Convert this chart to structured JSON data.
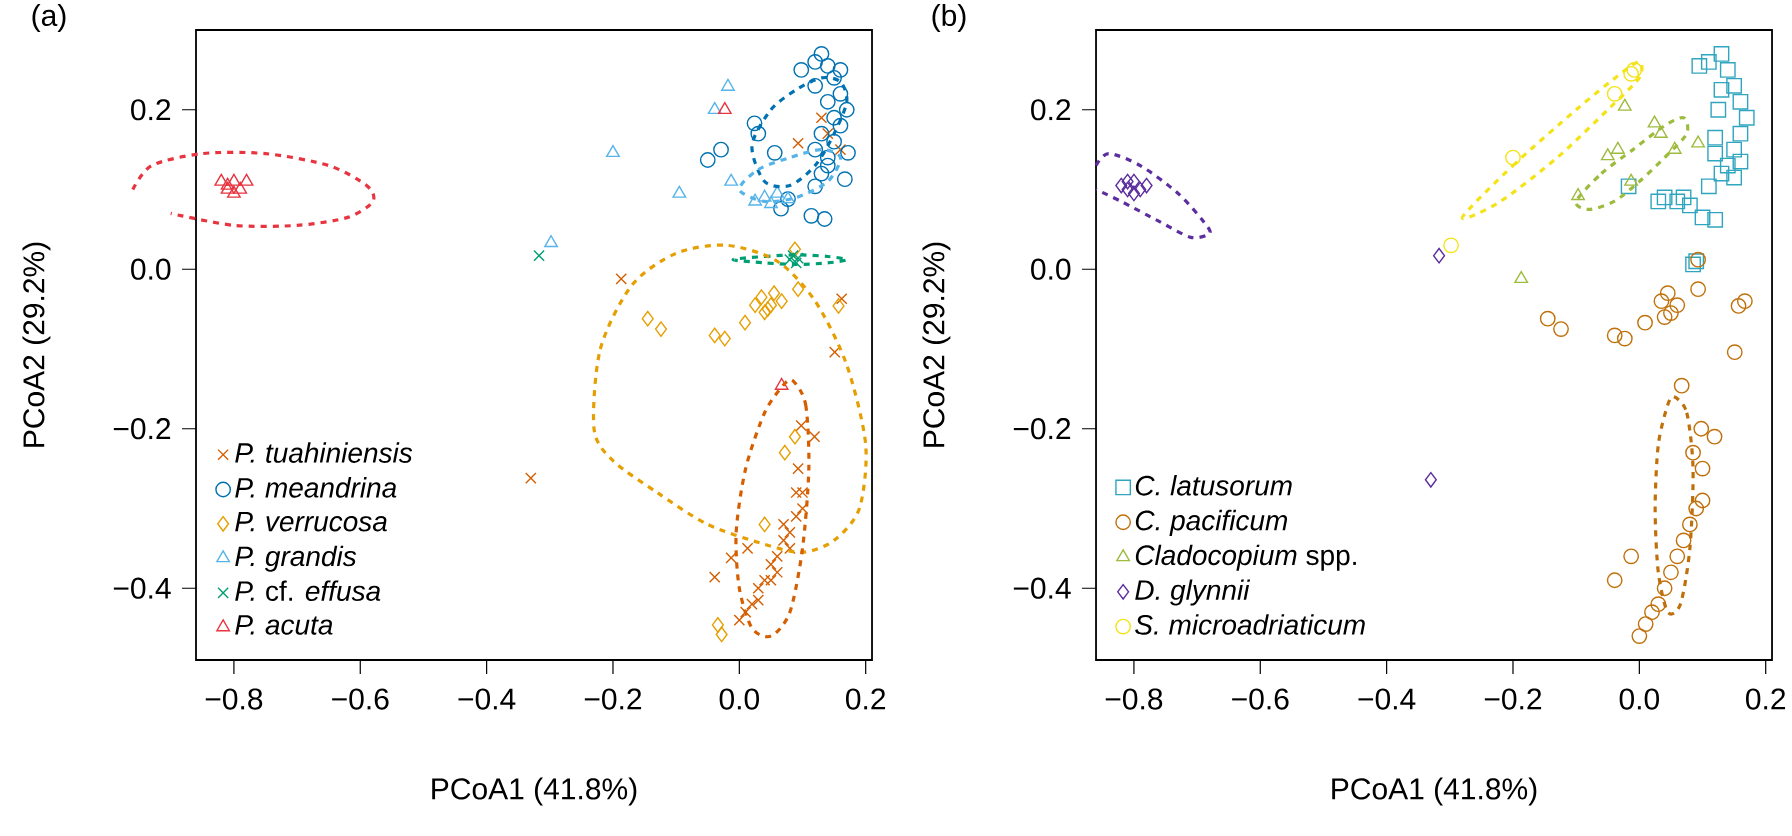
{
  "chart_data": [
    {
      "type": "scatter",
      "title": "(a)",
      "xlabel": "PCoA1 (41.8%)",
      "ylabel": "PCoA2 (29.2%)",
      "xlim": [
        -0.86,
        0.21
      ],
      "ylim": [
        -0.49,
        0.3
      ],
      "xticks": [
        {
          "value": -0.8,
          "label": "−0.8"
        },
        {
          "value": -0.6,
          "label": "−0.6"
        },
        {
          "value": -0.4,
          "label": "−0.4"
        },
        {
          "value": -0.2,
          "label": "−0.2"
        },
        {
          "value": 0,
          "label": "0.0"
        },
        0.2
      ],
      "yticks": [
        {
          "value": -0.4,
          "label": "−0.4"
        },
        {
          "value": -0.2,
          "label": "−0.2"
        },
        {
          "value": 0,
          "label": "0.0"
        },
        0.2
      ],
      "legend": "bottom left",
      "series": [
        {
          "name": "*P. tuahiniensis*",
          "marker": "cross",
          "color": "#d55e00",
          "x": [
            -0.33,
            -0.187,
            0.093,
            0.162,
            0.151,
            0.098,
            0.119,
            0.093,
            -0.039,
            -0.013,
            0.013,
            0.0,
            0.01,
            0.02,
            0.03,
            0.04,
            0.05,
            0.06,
            0.07,
            0.08,
            0.09,
            0.1,
            0.1,
            0.05,
            0.06,
            0.08,
            0.03,
            0.07,
            0.09,
            0.14,
            0.16,
            0.13
          ],
          "values": [
            -0.262,
            -0.012,
            0.158,
            -0.037,
            -0.104,
            -0.196,
            -0.21,
            -0.25,
            -0.386,
            -0.362,
            -0.35,
            -0.44,
            -0.43,
            -0.42,
            -0.4,
            -0.39,
            -0.37,
            -0.36,
            -0.34,
            -0.33,
            -0.31,
            -0.3,
            -0.28,
            -0.39,
            -0.38,
            -0.35,
            -0.415,
            -0.32,
            -0.28,
            0.17,
            0.15,
            0.19
          ]
        },
        {
          "name": "*P. meandrina*",
          "marker": "circle",
          "color": "#0072b2",
          "x": [
            -0.05,
            -0.029,
            0.024,
            0.03,
            0.056,
            0.077,
            0.066,
            0.114,
            0.135,
            0.12,
            0.098,
            0.167,
            0.172,
            0.12,
            0.13,
            0.14,
            0.15,
            0.16,
            0.17,
            0.16,
            0.15,
            0.14,
            0.13,
            0.12,
            0.14,
            0.15,
            0.13,
            0.16,
            0.12,
            0.14
          ],
          "values": [
            0.137,
            0.15,
            0.183,
            0.17,
            0.146,
            0.088,
            0.076,
            0.067,
            0.063,
            0.104,
            0.25,
            0.113,
            0.146,
            0.26,
            0.27,
            0.255,
            0.24,
            0.22,
            0.2,
            0.18,
            0.16,
            0.14,
            0.12,
            0.23,
            0.21,
            0.19,
            0.17,
            0.25,
            0.15,
            0.13
          ]
        },
        {
          "name": "*P. verrucosa*",
          "marker": "diamond",
          "color": "#e69f00",
          "x": [
            -0.145,
            -0.124,
            -0.039,
            -0.023,
            0.009,
            0.025,
            0.035,
            0.045,
            0.055,
            0.067,
            0.04,
            0.05,
            0.093,
            0.157,
            0.072,
            0.088,
            0.04,
            -0.034,
            -0.028,
            0.088
          ],
          "values": [
            -0.062,
            -0.075,
            -0.083,
            -0.087,
            -0.067,
            -0.045,
            -0.035,
            -0.05,
            -0.03,
            -0.04,
            -0.054,
            -0.045,
            -0.025,
            -0.046,
            -0.23,
            -0.21,
            -0.32,
            -0.446,
            -0.458,
            0.025
          ]
        },
        {
          "name": "*P. grandis*",
          "marker": "triangle",
          "color": "#56b4e9",
          "x": [
            -0.018,
            -0.039,
            -0.2,
            -0.095,
            -0.298,
            -0.013,
            0.025,
            0.04,
            0.05,
            0.06,
            0.077
          ],
          "values": [
            0.229,
            0.2,
            0.146,
            0.095,
            0.033,
            0.11,
            0.085,
            0.09,
            0.082,
            0.095,
            0.088
          ]
        },
        {
          "name": "*P.* cf. *effusa*",
          "marker": "cross",
          "color": "#009e73",
          "x": [
            -0.317,
            0.08,
            0.085,
            0.09,
            0.093
          ],
          "values": [
            0.017,
            0.012,
            0.017,
            0.008,
            0.014
          ]
        },
        {
          "name": "*P. acuta*",
          "marker": "triangle",
          "color": "#e8343f",
          "x": [
            -0.82,
            -0.81,
            -0.8,
            -0.79,
            -0.78,
            -0.8,
            -0.81,
            -0.023,
            0.067
          ],
          "values": [
            0.11,
            0.1,
            0.11,
            0.1,
            0.11,
            0.095,
            0.105,
            0.2,
            -0.146
          ]
        }
      ]
    },
    {
      "type": "scatter",
      "title": "(b)",
      "xlabel": "PCoA1 (41.8%)",
      "ylabel": "PCoA2 (29.2%)",
      "xlim": [
        -0.86,
        0.21
      ],
      "ylim": [
        -0.49,
        0.3
      ],
      "xticks": [
        {
          "value": -0.8,
          "label": "−0.8"
        },
        {
          "value": -0.6,
          "label": "−0.6"
        },
        {
          "value": -0.4,
          "label": "−0.4"
        },
        {
          "value": -0.2,
          "label": "−0.2"
        },
        {
          "value": 0,
          "label": "0.0"
        },
        0.2
      ],
      "yticks": [
        {
          "value": -0.4,
          "label": "−0.4"
        },
        {
          "value": -0.2,
          "label": "−0.2"
        },
        {
          "value": 0,
          "label": "0.0"
        },
        0.2
      ],
      "legend": "bottom left",
      "series": [
        {
          "name": "*C. latusorum*",
          "marker": "square",
          "color": "#30a5c0",
          "x": [
            0.095,
            0.11,
            0.13,
            0.14,
            0.15,
            0.16,
            0.17,
            0.16,
            0.15,
            0.14,
            0.13,
            0.15,
            0.16,
            0.12,
            0.125,
            0.13,
            0.12,
            0.04,
            0.06,
            0.07,
            0.08,
            0.03,
            0.1,
            0.12,
            0.11,
            -0.017,
            0.085,
            0.09
          ],
          "values": [
            0.255,
            0.26,
            0.27,
            0.25,
            0.23,
            0.21,
            0.19,
            0.17,
            0.15,
            0.13,
            0.12,
            0.115,
            0.135,
            0.145,
            0.2,
            0.225,
            0.165,
            0.09,
            0.085,
            0.09,
            0.08,
            0.085,
            0.065,
            0.062,
            0.104,
            0.104,
            0.006,
            0.01
          ]
        },
        {
          "name": "*C. pacificum*",
          "marker": "circle",
          "color": "#c0700a",
          "x": [
            -0.145,
            -0.124,
            -0.039,
            -0.023,
            0.009,
            0.035,
            0.045,
            0.05,
            0.06,
            0.04,
            0.093,
            0.093,
            0.157,
            0.167,
            0.151,
            0.067,
            0.098,
            0.119,
            -0.039,
            -0.013,
            0.0,
            0.01,
            0.02,
            0.03,
            0.04,
            0.05,
            0.06,
            0.07,
            0.08,
            0.09,
            0.1,
            0.1,
            0.085
          ],
          "values": [
            -0.062,
            -0.075,
            -0.083,
            -0.087,
            -0.067,
            -0.04,
            -0.03,
            -0.055,
            -0.045,
            -0.06,
            -0.025,
            0.012,
            -0.046,
            -0.04,
            -0.104,
            -0.146,
            -0.2,
            -0.21,
            -0.39,
            -0.36,
            -0.46,
            -0.445,
            -0.43,
            -0.42,
            -0.4,
            -0.38,
            -0.36,
            -0.34,
            -0.32,
            -0.3,
            -0.29,
            -0.25,
            -0.23
          ]
        },
        {
          "name": "*Cladocopium* spp.",
          "marker": "triangle",
          "color": "#9dbb3c",
          "x": [
            -0.023,
            -0.034,
            -0.05,
            0.024,
            0.034,
            0.056,
            0.093,
            -0.097,
            -0.013,
            -0.187
          ],
          "values": [
            0.204,
            0.15,
            0.142,
            0.183,
            0.17,
            0.15,
            0.158,
            0.092,
            0.11,
            -0.012
          ]
        },
        {
          "name": "*D. glynnii*",
          "marker": "diamond",
          "color": "#5b2d9e",
          "x": [
            -0.82,
            -0.81,
            -0.8,
            -0.79,
            -0.78,
            -0.8,
            -0.81,
            -0.317,
            -0.33
          ],
          "values": [
            0.105,
            0.1,
            0.11,
            0.1,
            0.105,
            0.095,
            0.11,
            0.017,
            -0.264
          ]
        },
        {
          "name": "*S. microadriaticum*",
          "marker": "circle",
          "color": "#f5e31a",
          "x": [
            -0.298,
            -0.2,
            -0.039,
            -0.013,
            -0.008
          ],
          "values": [
            0.03,
            0.14,
            0.22,
            0.245,
            0.25
          ]
        }
      ]
    }
  ]
}
